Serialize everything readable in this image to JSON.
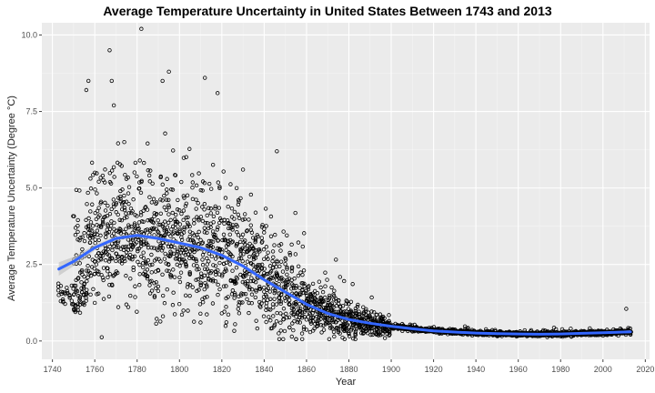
{
  "chart_data": {
    "type": "scatter",
    "title": "Average Temperature Uncertainty in United States Between 1743 and 2013",
    "xlabel": "Year",
    "ylabel": "Average Temperature Uncertainty (Degree °C)",
    "xlim": [
      1735,
      2022
    ],
    "ylim": [
      -0.6,
      10.4
    ],
    "xticks": [
      1740,
      1760,
      1780,
      1800,
      1820,
      1840,
      1860,
      1880,
      1900,
      1920,
      1940,
      1960,
      1980,
      2000,
      2020
    ],
    "yticks": [
      0.0,
      2.5,
      5.0,
      7.5,
      10.0
    ],
    "ytick_labels": [
      "0.0",
      "2.5",
      "5.0",
      "7.5",
      "10.0"
    ],
    "grid": true,
    "point_style": "hollow-circle",
    "background": "#ebebeb",
    "point_color": "#000000",
    "smooth_color": "#3366ff",
    "ribbon_color": "#bdbdbd",
    "points_note_range": [
      1743,
      2013
    ],
    "sample_points": [
      [
        1743,
        1.5
      ],
      [
        1744,
        1.8
      ],
      [
        1745,
        1.3
      ],
      [
        1750,
        1.2
      ],
      [
        1751,
        1.0
      ],
      [
        1757,
        8.5
      ],
      [
        1756,
        8.2
      ],
      [
        1760,
        5.5
      ],
      [
        1767,
        9.5
      ],
      [
        1768,
        8.5
      ],
      [
        1769,
        7.7
      ],
      [
        1782,
        10.2
      ],
      [
        1792,
        8.5
      ],
      [
        1795,
        8.8
      ],
      [
        1812,
        8.6
      ],
      [
        1818,
        8.1
      ],
      [
        1846,
        6.2
      ],
      [
        1830,
        5.6
      ],
      [
        2011,
        1.05
      ]
    ],
    "trend": {
      "x": [
        1743,
        1750,
        1760,
        1770,
        1780,
        1790,
        1800,
        1810,
        1820,
        1830,
        1840,
        1850,
        1860,
        1870,
        1880,
        1890,
        1900,
        1910,
        1920,
        1930,
        1940,
        1950,
        1960,
        1970,
        1980,
        1990,
        2000,
        2013
      ],
      "y": [
        2.35,
        2.6,
        3.05,
        3.35,
        3.45,
        3.35,
        3.2,
        3.05,
        2.8,
        2.45,
        2.0,
        1.6,
        1.2,
        0.9,
        0.7,
        0.58,
        0.48,
        0.4,
        0.33,
        0.29,
        0.26,
        0.24,
        0.23,
        0.22,
        0.23,
        0.25,
        0.27,
        0.3
      ],
      "ci_halfwidth": [
        0.22,
        0.15,
        0.09,
        0.07,
        0.06,
        0.06,
        0.06,
        0.06,
        0.06,
        0.06,
        0.06,
        0.06,
        0.05,
        0.04,
        0.04,
        0.03,
        0.03,
        0.03,
        0.03,
        0.03,
        0.03,
        0.03,
        0.03,
        0.03,
        0.03,
        0.03,
        0.03,
        0.05
      ]
    }
  }
}
